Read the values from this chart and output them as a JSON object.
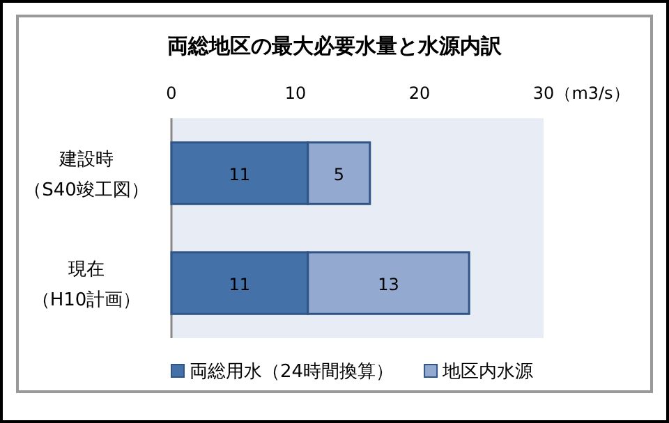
{
  "chart_data": {
    "type": "bar",
    "orientation": "horizontal",
    "stacked": true,
    "title": "両総地区の最大必要水量と水源内訳",
    "xlabel": "（m3/s）",
    "categories": [
      "建設時（S40竣工図）",
      "現在（H10計画）"
    ],
    "series": [
      {
        "name": "両総用水（24時間換算）",
        "color": "#4472a8",
        "values": [
          11,
          11
        ]
      },
      {
        "name": "地区内水源",
        "color": "#93a9d0",
        "values": [
          5,
          13
        ]
      }
    ],
    "xlim": [
      0,
      30
    ],
    "xticks": [
      0,
      10,
      20,
      30
    ],
    "data_labels": true,
    "legend": "bottom",
    "grid": false
  }
}
